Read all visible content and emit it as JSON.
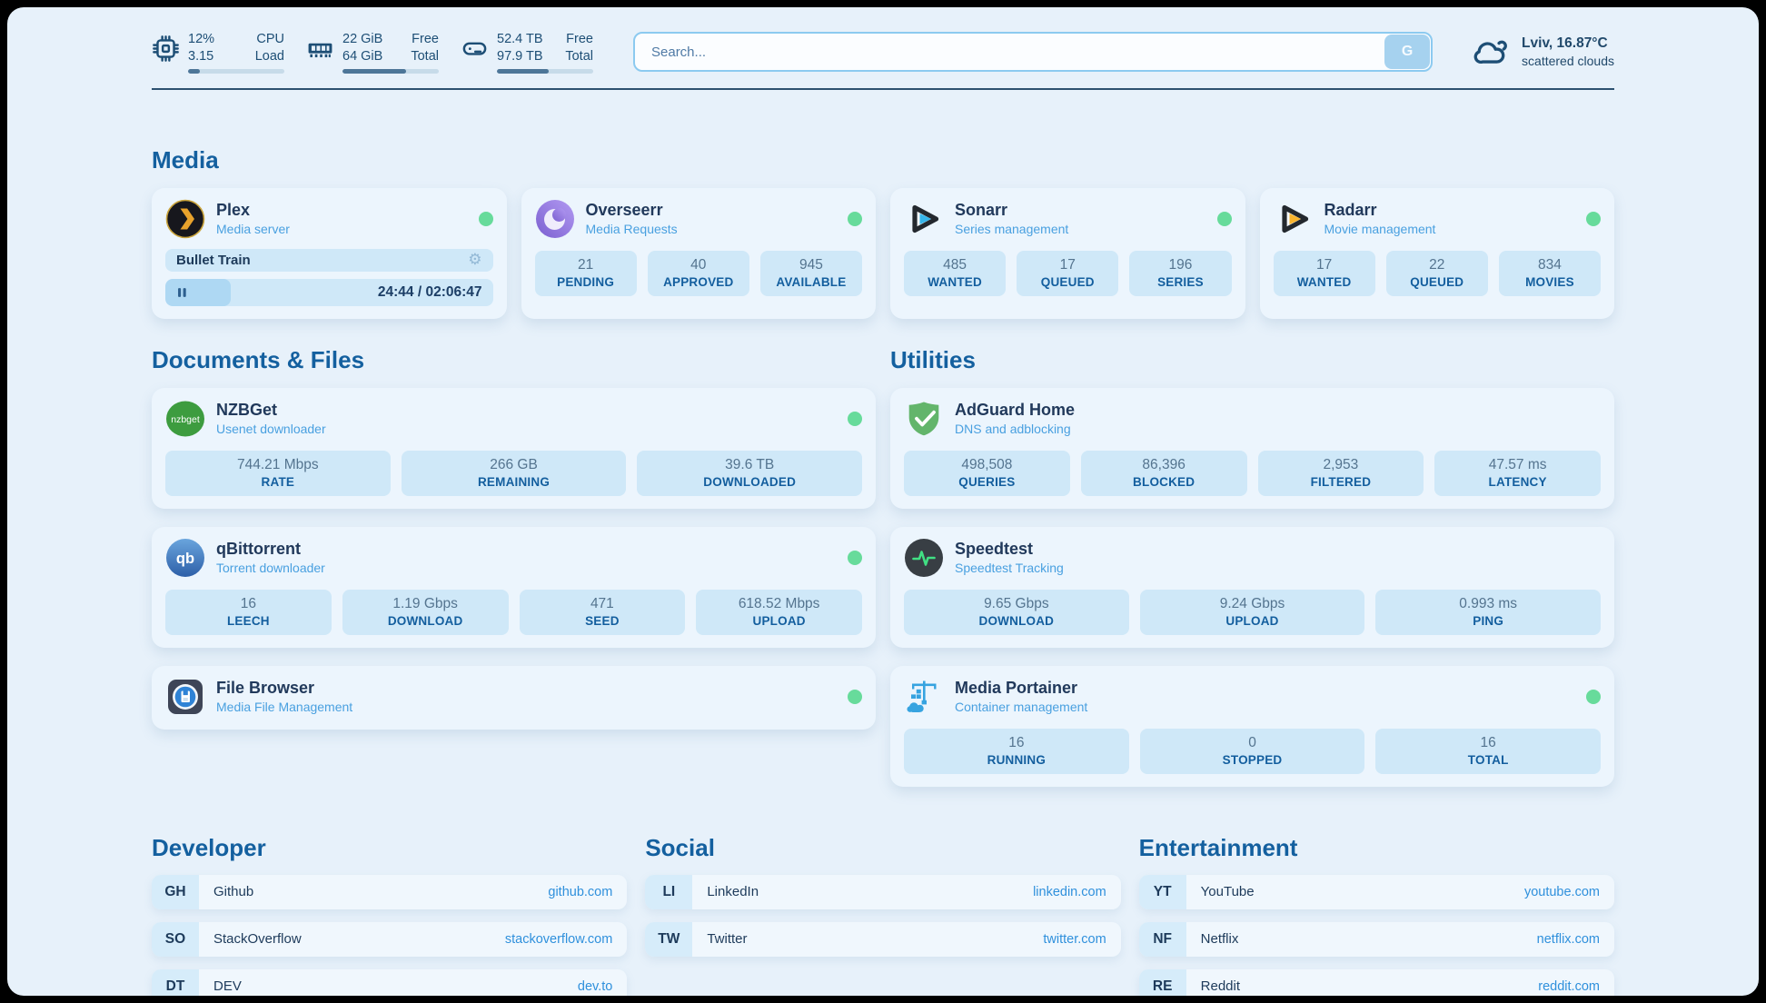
{
  "colors": {
    "status_green": "#67db9b",
    "link_blue": "#2f90dc",
    "header_blue": "#14609f",
    "tile_bg": "#cfe8f8"
  },
  "topbar": {
    "resources": [
      {
        "icon": "cpu-icon",
        "values": [
          "12%",
          "3.15"
        ],
        "labels": [
          "CPU",
          "Load"
        ],
        "progress_pct": 12
      },
      {
        "icon": "ram-icon",
        "values": [
          "22 GiB",
          "64 GiB"
        ],
        "labels": [
          "Free",
          "Total"
        ],
        "progress_pct": 66
      },
      {
        "icon": "disk-icon",
        "values": [
          "52.4 TB",
          "97.9 TB"
        ],
        "labels": [
          "Free",
          "Total"
        ],
        "progress_pct": 54
      }
    ],
    "search": {
      "placeholder": "Search...",
      "button_label": "G"
    },
    "weather": {
      "icon": "cloud-icon",
      "location_temp": "Lviv, 16.87°C",
      "condition": "scattered clouds"
    }
  },
  "media_section": {
    "title": "Media",
    "cards": [
      {
        "name": "Plex",
        "description": "Media server",
        "icon": "plex",
        "status_dot": true,
        "player": {
          "title": "Bullet Train",
          "time": "24:44 / 02:06:47",
          "progress_pct": 20
        }
      },
      {
        "name": "Overseerr",
        "description": "Media Requests",
        "icon": "overseerr",
        "status_dot": true,
        "stats": [
          {
            "value": "21",
            "label": "PENDING"
          },
          {
            "value": "40",
            "label": "APPROVED"
          },
          {
            "value": "945",
            "label": "AVAILABLE"
          }
        ]
      },
      {
        "name": "Sonarr",
        "description": "Series management",
        "icon": "sonarr",
        "status_dot": true,
        "stats": [
          {
            "value": "485",
            "label": "WANTED"
          },
          {
            "value": "17",
            "label": "QUEUED"
          },
          {
            "value": "196",
            "label": "SERIES"
          }
        ]
      },
      {
        "name": "Radarr",
        "description": "Movie management",
        "icon": "radarr",
        "status_dot": true,
        "stats": [
          {
            "value": "17",
            "label": "WANTED"
          },
          {
            "value": "22",
            "label": "QUEUED"
          },
          {
            "value": "834",
            "label": "MOVIES"
          }
        ]
      }
    ]
  },
  "documents_section": {
    "title": "Documents & Files",
    "cards": [
      {
        "name": "NZBGet",
        "description": "Usenet downloader",
        "icon": "nzbget",
        "status_dot": true,
        "stats": [
          {
            "value": "744.21 Mbps",
            "label": "RATE"
          },
          {
            "value": "266 GB",
            "label": "REMAINING"
          },
          {
            "value": "39.6 TB",
            "label": "DOWNLOADED"
          }
        ]
      },
      {
        "name": "qBittorrent",
        "description": "Torrent downloader",
        "icon": "qbittorrent",
        "status_dot": true,
        "stats": [
          {
            "value": "16",
            "label": "LEECH"
          },
          {
            "value": "1.19 Gbps",
            "label": "DOWNLOAD"
          },
          {
            "value": "471",
            "label": "SEED"
          },
          {
            "value": "618.52 Mbps",
            "label": "UPLOAD"
          }
        ]
      },
      {
        "name": "File Browser",
        "description": "Media File Management",
        "icon": "filebrowser",
        "status_dot": true
      }
    ]
  },
  "utilities_section": {
    "title": "Utilities",
    "cards": [
      {
        "name": "AdGuard Home",
        "description": "DNS and adblocking",
        "icon": "adguard",
        "status_dot": false,
        "stats": [
          {
            "value": "498,508",
            "label": "QUERIES"
          },
          {
            "value": "86,396",
            "label": "BLOCKED"
          },
          {
            "value": "2,953",
            "label": "FILTERED"
          },
          {
            "value": "47.57 ms",
            "label": "LATENCY"
          }
        ]
      },
      {
        "name": "Speedtest",
        "description": "Speedtest Tracking",
        "icon": "speedtest",
        "status_dot": false,
        "stats": [
          {
            "value": "9.65 Gbps",
            "label": "DOWNLOAD"
          },
          {
            "value": "9.24 Gbps",
            "label": "UPLOAD"
          },
          {
            "value": "0.993 ms",
            "label": "PING"
          }
        ]
      },
      {
        "name": "Media Portainer",
        "description": "Container management",
        "icon": "portainer",
        "status_dot": true,
        "stats": [
          {
            "value": "16",
            "label": "RUNNING"
          },
          {
            "value": "0",
            "label": "STOPPED"
          },
          {
            "value": "16",
            "label": "TOTAL"
          }
        ]
      }
    ]
  },
  "bookmark_sections": [
    {
      "title": "Developer",
      "links": [
        {
          "abbr": "GH",
          "name": "Github",
          "url": "github.com"
        },
        {
          "abbr": "SO",
          "name": "StackOverflow",
          "url": "stackoverflow.com"
        },
        {
          "abbr": "DT",
          "name": "DEV",
          "url": "dev.to"
        }
      ]
    },
    {
      "title": "Social",
      "links": [
        {
          "abbr": "LI",
          "name": "LinkedIn",
          "url": "linkedin.com"
        },
        {
          "abbr": "TW",
          "name": "Twitter",
          "url": "twitter.com"
        }
      ]
    },
    {
      "title": "Entertainment",
      "links": [
        {
          "abbr": "YT",
          "name": "YouTube",
          "url": "youtube.com"
        },
        {
          "abbr": "NF",
          "name": "Netflix",
          "url": "netflix.com"
        },
        {
          "abbr": "RE",
          "name": "Reddit",
          "url": "reddit.com"
        }
      ]
    }
  ],
  "player_controls": {
    "pause_icon": "pause-icon",
    "settings_icon": "gear-icon",
    "gear_glyph": "⚙"
  }
}
